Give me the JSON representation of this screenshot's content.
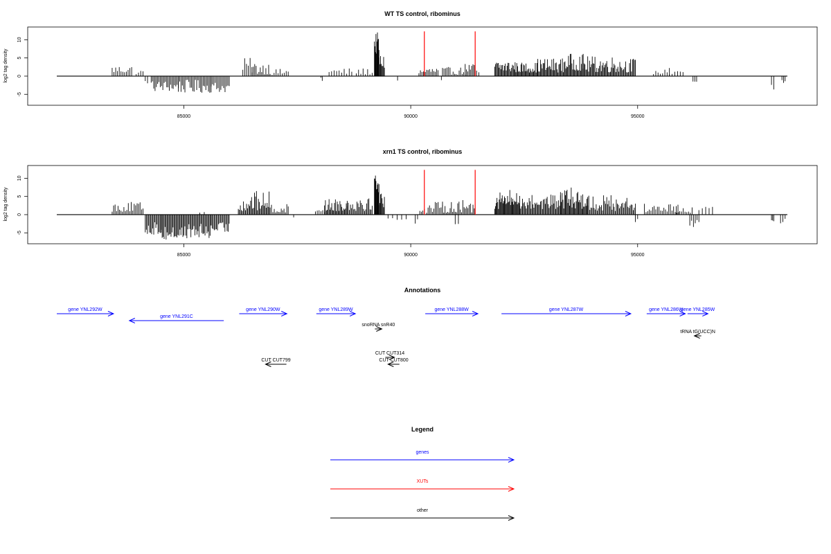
{
  "chart_data": [
    {
      "type": "bar",
      "title": "WT TS control, ribominus",
      "ylabel": "log2 tag density",
      "xlim": [
        82200,
        98300
      ],
      "ylim": [
        -8,
        13.5
      ],
      "xticks": [
        85000,
        90000,
        95000
      ],
      "yticks": [
        -5,
        0,
        5,
        10
      ],
      "xut_markers": [
        90300,
        91420
      ],
      "segments": [
        {
          "x0": 83420,
          "x1": 83850,
          "lo": 0.8,
          "hi": 3.0,
          "n": 12
        },
        {
          "x0": 83950,
          "x1": 84100,
          "lo": 0.5,
          "hi": 1.8,
          "n": 4
        },
        {
          "x0": 84150,
          "x1": 84200,
          "lo": -2.0,
          "hi": -1.0,
          "n": 2
        },
        {
          "x0": 84280,
          "x1": 84880,
          "lo": -4.2,
          "hi": -1.2,
          "n": 22
        },
        {
          "x0": 84880,
          "x1": 85600,
          "lo": -4.6,
          "hi": -1.0,
          "n": 26
        },
        {
          "x0": 85600,
          "x1": 86000,
          "lo": -4.5,
          "hi": -1.5,
          "n": 14
        },
        {
          "x0": 86300,
          "x1": 86500,
          "lo": 0.8,
          "hi": 5.0,
          "n": 6
        },
        {
          "x0": 86500,
          "x1": 86900,
          "lo": 0.5,
          "hi": 4.0,
          "n": 14
        },
        {
          "x0": 86900,
          "x1": 87300,
          "lo": 0.3,
          "hi": 2.0,
          "n": 10
        },
        {
          "x0": 88020,
          "x1": 88050,
          "lo": -2.0,
          "hi": 1.5,
          "n": 2
        },
        {
          "x0": 88200,
          "x1": 88700,
          "lo": 0.4,
          "hi": 2.2,
          "n": 10
        },
        {
          "x0": 88800,
          "x1": 89150,
          "lo": 0.4,
          "hi": 2.2,
          "n": 8
        },
        {
          "x0": 89200,
          "x1": 89300,
          "lo": 6.0,
          "hi": 12.0,
          "n": 10
        },
        {
          "x0": 89300,
          "x1": 89420,
          "lo": 2.0,
          "hi": 6.0,
          "n": 8
        },
        {
          "x0": 89700,
          "x1": 89720,
          "lo": -1.5,
          "hi": -1.0,
          "n": 1
        },
        {
          "x0": 90180,
          "x1": 90280,
          "lo": 0.5,
          "hi": 2.0,
          "n": 4
        },
        {
          "x0": 90320,
          "x1": 90600,
          "lo": 0.5,
          "hi": 2.5,
          "n": 10
        },
        {
          "x0": 90650,
          "x1": 90700,
          "lo": -1.5,
          "hi": -0.8,
          "n": 1
        },
        {
          "x0": 90700,
          "x1": 91200,
          "lo": 0.4,
          "hi": 2.5,
          "n": 16
        },
        {
          "x0": 91200,
          "x1": 91400,
          "lo": 1.0,
          "hi": 3.5,
          "n": 8
        },
        {
          "x0": 91450,
          "x1": 91500,
          "lo": 0.5,
          "hi": 1.8,
          "n": 2
        },
        {
          "x0": 91850,
          "x1": 92300,
          "lo": 1.0,
          "hi": 4.5,
          "n": 24
        },
        {
          "x0": 92300,
          "x1": 92800,
          "lo": 1.0,
          "hi": 3.8,
          "n": 28
        },
        {
          "x0": 92800,
          "x1": 93400,
          "lo": 1.0,
          "hi": 5.0,
          "n": 32
        },
        {
          "x0": 93400,
          "x1": 93800,
          "lo": 1.5,
          "hi": 6.2,
          "n": 22
        },
        {
          "x0": 93800,
          "x1": 94500,
          "lo": 1.0,
          "hi": 5.5,
          "n": 36
        },
        {
          "x0": 94500,
          "x1": 94950,
          "lo": 1.0,
          "hi": 5.0,
          "n": 22
        },
        {
          "x0": 95350,
          "x1": 95700,
          "lo": 0.5,
          "hi": 1.8,
          "n": 8
        },
        {
          "x0": 95700,
          "x1": 96000,
          "lo": 0.5,
          "hi": 2.5,
          "n": 6
        },
        {
          "x0": 96220,
          "x1": 96300,
          "lo": -1.8,
          "hi": -1.0,
          "n": 3
        },
        {
          "x0": 97950,
          "x1": 98000,
          "lo": -3.8,
          "hi": -1.5,
          "n": 2
        },
        {
          "x0": 98180,
          "x1": 98250,
          "lo": -2.5,
          "hi": -1.0,
          "n": 3
        }
      ]
    },
    {
      "type": "bar",
      "title": "xrn1 TS control, ribominus",
      "ylabel": "log2 tag density",
      "xlim": [
        82200,
        98300
      ],
      "ylim": [
        -8,
        13.5
      ],
      "xticks": [
        85000,
        90000,
        95000
      ],
      "yticks": [
        -5,
        0,
        5,
        10
      ],
      "xut_markers": [
        90300,
        91420
      ],
      "segments": [
        {
          "x0": 83420,
          "x1": 84100,
          "lo": 0.8,
          "hi": 3.5,
          "n": 22
        },
        {
          "x0": 84150,
          "x1": 84500,
          "lo": -5.5,
          "hi": -2.0,
          "n": 16
        },
        {
          "x0": 84500,
          "x1": 85000,
          "lo": -7.0,
          "hi": -3.0,
          "n": 24
        },
        {
          "x0": 85000,
          "x1": 85600,
          "lo": -6.5,
          "hi": -2.5,
          "n": 28
        },
        {
          "x0": 85600,
          "x1": 86000,
          "lo": -5.0,
          "hi": -2.0,
          "n": 18
        },
        {
          "x0": 85350,
          "x1": 85450,
          "lo": 0.3,
          "hi": 1.5,
          "n": 2
        },
        {
          "x0": 86200,
          "x1": 86450,
          "lo": 1.0,
          "hi": 4.5,
          "n": 12
        },
        {
          "x0": 86450,
          "x1": 86900,
          "lo": 1.0,
          "hi": 6.5,
          "n": 22
        },
        {
          "x0": 86900,
          "x1": 87300,
          "lo": 0.5,
          "hi": 3.0,
          "n": 14
        },
        {
          "x0": 87400,
          "x1": 87440,
          "lo": -0.8,
          "hi": -0.5,
          "n": 1
        },
        {
          "x0": 87900,
          "x1": 88100,
          "lo": 0.5,
          "hi": 2.5,
          "n": 6
        },
        {
          "x0": 88100,
          "x1": 88600,
          "lo": 1.0,
          "hi": 4.5,
          "n": 26
        },
        {
          "x0": 88600,
          "x1": 89150,
          "lo": 1.0,
          "hi": 5.5,
          "n": 24
        },
        {
          "x0": 89200,
          "x1": 89300,
          "lo": 6.0,
          "hi": 12.0,
          "n": 10
        },
        {
          "x0": 89300,
          "x1": 89420,
          "lo": 2.0,
          "hi": 6.0,
          "n": 8
        },
        {
          "x0": 89500,
          "x1": 89900,
          "lo": -1.5,
          "hi": -0.5,
          "n": 5
        },
        {
          "x0": 90100,
          "x1": 90150,
          "lo": -3.0,
          "hi": -1.0,
          "n": 2
        },
        {
          "x0": 90200,
          "x1": 90300,
          "lo": 0.5,
          "hi": 3.0,
          "n": 4
        },
        {
          "x0": 90350,
          "x1": 90700,
          "lo": 0.5,
          "hi": 3.5,
          "n": 12
        },
        {
          "x0": 90700,
          "x1": 91400,
          "lo": 0.5,
          "hi": 4.0,
          "n": 26
        },
        {
          "x0": 90980,
          "x1": 91050,
          "lo": -2.8,
          "hi": -1.5,
          "n": 2
        },
        {
          "x0": 91850,
          "x1": 92400,
          "lo": 1.5,
          "hi": 7.0,
          "n": 34
        },
        {
          "x0": 92400,
          "x1": 93300,
          "lo": 1.5,
          "hi": 5.5,
          "n": 44
        },
        {
          "x0": 93300,
          "x1": 93900,
          "lo": 1.5,
          "hi": 7.5,
          "n": 34
        },
        {
          "x0": 93900,
          "x1": 94950,
          "lo": 1.0,
          "hi": 5.5,
          "n": 46
        },
        {
          "x0": 94950,
          "x1": 95000,
          "lo": -2.5,
          "hi": -1.0,
          "n": 2
        },
        {
          "x0": 95150,
          "x1": 95900,
          "lo": 0.5,
          "hi": 3.0,
          "n": 22
        },
        {
          "x0": 95850,
          "x1": 96200,
          "lo": 0.5,
          "hi": 2.8,
          "n": 10
        },
        {
          "x0": 96150,
          "x1": 96350,
          "lo": -3.5,
          "hi": -1.5,
          "n": 6
        },
        {
          "x0": 96350,
          "x1": 96650,
          "lo": 1.0,
          "hi": 2.5,
          "n": 5
        },
        {
          "x0": 97950,
          "x1": 98000,
          "lo": -2.5,
          "hi": -1.0,
          "n": 3
        },
        {
          "x0": 98150,
          "x1": 98250,
          "lo": -2.5,
          "hi": -1.0,
          "n": 3
        }
      ]
    }
  ],
  "annotations": {
    "title": "Annotations",
    "features": [
      {
        "label": "gene YNL292W",
        "x0": 82200,
        "x1": 83450,
        "row": 0,
        "color": "#0000ff",
        "dir": "right"
      },
      {
        "label": "gene YNL291C",
        "x0": 83800,
        "x1": 85880,
        "row": 1,
        "color": "#0000ff",
        "dir": "left"
      },
      {
        "label": "gene YNL290W",
        "x0": 86220,
        "x1": 87270,
        "row": 0,
        "color": "#0000ff",
        "dir": "right"
      },
      {
        "label": "gene YNL289W",
        "x0": 87920,
        "x1": 88780,
        "row": 0,
        "color": "#0000ff",
        "dir": "right"
      },
      {
        "label": "snoRNA snR40",
        "x0": 89210,
        "x1": 89340,
        "row": 2,
        "color": "#000000",
        "dir": "right"
      },
      {
        "label": "gene YNL288W",
        "x0": 90320,
        "x1": 91480,
        "row": 0,
        "color": "#0000ff",
        "dir": "right"
      },
      {
        "label": "gene YNL287W",
        "x0": 92000,
        "x1": 94850,
        "row": 0,
        "color": "#0000ff",
        "dir": "right"
      },
      {
        "label": "gene YNL286W",
        "x0": 95200,
        "x1": 96050,
        "row": 0,
        "color": "#0000ff",
        "dir": "right"
      },
      {
        "label": "gene YNL285W",
        "x0": 96100,
        "x1": 96550,
        "row": 0,
        "color": "#0000ff",
        "dir": "right"
      },
      {
        "label": "tRNA tG(UCC)N",
        "x0": 96250,
        "x1": 96380,
        "row": 4,
        "color": "#000000",
        "dir": "left"
      },
      {
        "label": "CUT CUT314",
        "x0": 89440,
        "x1": 89640,
        "row": 6,
        "color": "#000000",
        "dir": "right"
      },
      {
        "label": "CUT CUT800",
        "x0": 89500,
        "x1": 89750,
        "row": 7,
        "color": "#000000",
        "dir": "left"
      },
      {
        "label": "CUT CUT799",
        "x0": 86800,
        "x1": 87260,
        "row": 7,
        "color": "#000000",
        "dir": "left"
      }
    ]
  },
  "legend": {
    "title": "Legend",
    "items": [
      {
        "label": "genes",
        "color": "#0000ff"
      },
      {
        "label": "XUTs",
        "color": "#ff0000"
      },
      {
        "label": "other",
        "color": "#000000"
      }
    ]
  }
}
